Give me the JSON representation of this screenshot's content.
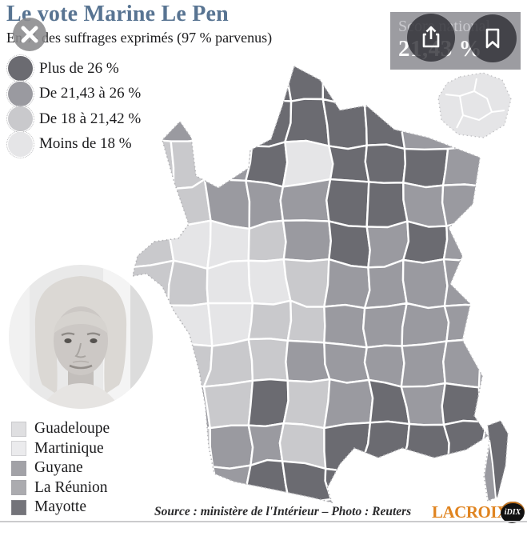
{
  "header": {
    "title": "Le vote Marine Le Pen",
    "subtitle": "En % des suffrages exprimés (97 % parvenus)"
  },
  "score": {
    "label": "Score national",
    "value": "21,43 %"
  },
  "legend": {
    "items": [
      {
        "label": "Plus de 26 %",
        "color": "#6b6b71"
      },
      {
        "label": "De 21,43 à 26 %",
        "color": "#9a9aa0"
      },
      {
        "label": "De 18 à 21,42 %",
        "color": "#c9c9cc"
      },
      {
        "label": "Moins de 18 %",
        "color": "#e5e5e7"
      }
    ]
  },
  "overseas": {
    "items": [
      {
        "label": "Guadeloupe",
        "color": "#dfdfe1"
      },
      {
        "label": "Martinique",
        "color": "#ebebed"
      },
      {
        "label": "Guyane",
        "color": "#a2a2a7"
      },
      {
        "label": "La Réunion",
        "color": "#ababaf"
      },
      {
        "label": "Mayotte",
        "color": "#74747a"
      }
    ]
  },
  "map": {
    "description": "Choropleth of metropolitan France by department, share of votes for Marine Le Pen",
    "class_colors": {
      "D": "#6b6b71",
      "M": "#9a9aa0",
      "L": "#c9c9cc",
      "X": "#e5e5e7"
    },
    "class_meaning": {
      "D": "Plus de 26 %",
      "M": "De 21,43 à 26 %",
      "L": "De 18 à 21,42 %",
      "X": "Moins de 18 %"
    },
    "grid": [
      "..DDDD....",
      "..MDDDD...",
      "LLMDXDDDM.",
      "LLMMMDDMM.",
      "LXXLMDMDM.",
      "LLXXLMMMM.",
      "LXXLLMMMM.",
      ".LLLMMMMM.",
      ".MLDLMDMD.",
      ".LMMLDDDD.",
      ".LMDDDD..."
    ],
    "corsica": {
      "main": "D",
      "southwest": "M"
    },
    "idf_inset": "X"
  },
  "footer": {
    "source": "Source : ministère de l'Intérieur – Photo : Reuters",
    "brand": "LACROIX",
    "brand2": "iDIX"
  },
  "icons": {
    "close": "close-icon",
    "share": "share-icon",
    "bookmark": "bookmark-icon"
  }
}
